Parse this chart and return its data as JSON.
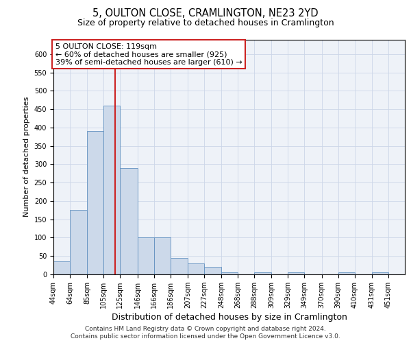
{
  "title1": "5, OULTON CLOSE, CRAMLINGTON, NE23 2YD",
  "title2": "Size of property relative to detached houses in Cramlington",
  "xlabel": "Distribution of detached houses by size in Cramlington",
  "ylabel": "Number of detached properties",
  "footer1": "Contains HM Land Registry data © Crown copyright and database right 2024.",
  "footer2": "Contains public sector information licensed under the Open Government Licence v3.0.",
  "property_label": "5 OULTON CLOSE: 119sqm",
  "annotation_line1": "← 60% of detached houses are smaller (925)",
  "annotation_line2": "39% of semi-detached houses are larger (610) →",
  "bar_color": "#ccd9ea",
  "bar_edge_color": "#6090bf",
  "vline_color": "#cc2222",
  "vline_x": 119,
  "categories": [
    "44sqm",
    "64sqm",
    "85sqm",
    "105sqm",
    "125sqm",
    "146sqm",
    "166sqm",
    "186sqm",
    "207sqm",
    "227sqm",
    "248sqm",
    "268sqm",
    "288sqm",
    "309sqm",
    "329sqm",
    "349sqm",
    "370sqm",
    "390sqm",
    "410sqm",
    "431sqm",
    "451sqm"
  ],
  "bin_edges": [
    44,
    64,
    85,
    105,
    125,
    146,
    166,
    186,
    207,
    227,
    248,
    268,
    288,
    309,
    329,
    349,
    370,
    390,
    410,
    431,
    451
  ],
  "values": [
    35,
    175,
    390,
    460,
    290,
    100,
    100,
    45,
    30,
    20,
    5,
    0,
    5,
    0,
    5,
    0,
    0,
    5,
    0,
    5,
    0
  ],
  "ylim": [
    0,
    640
  ],
  "yticks": [
    0,
    50,
    100,
    150,
    200,
    250,
    300,
    350,
    400,
    450,
    500,
    550,
    600
  ],
  "grid_color": "#ccd6e8",
  "bg_color": "#eef2f8",
  "title1_fontsize": 10.5,
  "title2_fontsize": 9,
  "ylabel_fontsize": 8,
  "xlabel_fontsize": 9,
  "tick_fontsize": 7,
  "annotation_fontsize": 8,
  "footer_fontsize": 6.5
}
